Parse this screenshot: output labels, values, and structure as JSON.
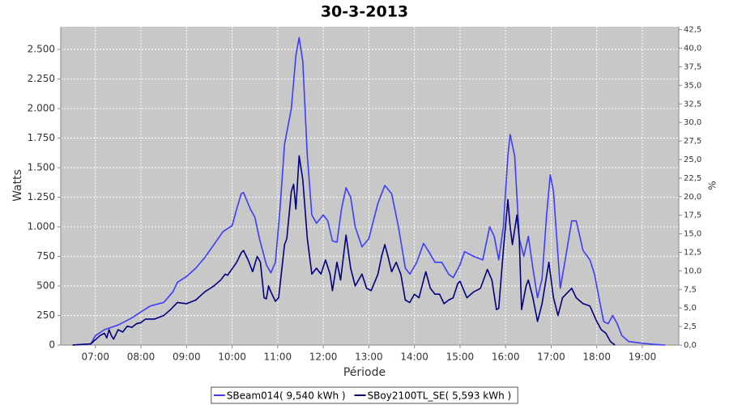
{
  "chart_data": {
    "type": "line",
    "title": "30-3-2013",
    "x_label": "Période",
    "y_label": "Watts",
    "y2_label": "%",
    "xlim": [
      6.24,
      19.8
    ],
    "xticks": [
      {
        "value": 7,
        "label": "07:00"
      },
      {
        "value": 8,
        "label": "08:00"
      },
      {
        "value": 9,
        "label": "09:00"
      },
      {
        "value": 10,
        "label": "10:00"
      },
      {
        "value": 11,
        "label": "11:00"
      },
      {
        "value": 12,
        "label": "12:00"
      },
      {
        "value": 13,
        "label": "13:00"
      },
      {
        "value": 14,
        "label": "14:00"
      },
      {
        "value": 15,
        "label": "15:00"
      },
      {
        "value": 16,
        "label": "16:00"
      },
      {
        "value": 17,
        "label": "17:00"
      },
      {
        "value": 18,
        "label": "18:00"
      },
      {
        "value": 19,
        "label": "19:00"
      }
    ],
    "ylim": [
      0,
      2692
    ],
    "yticks": [
      0,
      250,
      500,
      750,
      {
        "value": 1000,
        "label": "1.000"
      },
      {
        "value": 1250,
        "label": "1.250"
      },
      {
        "value": 1500,
        "label": "1.500"
      },
      {
        "value": 1750,
        "label": "1.750"
      },
      {
        "value": 2000,
        "label": "2.000"
      },
      {
        "value": 2250,
        "label": "2.250"
      },
      {
        "value": 2500,
        "label": "2.500"
      }
    ],
    "y2lim": [
      0,
      42.9
    ],
    "y2ticks": [
      {
        "value": 0,
        "label": "0,0"
      },
      {
        "value": 2.5,
        "label": "2,5"
      },
      {
        "value": 5,
        "label": "5,0"
      },
      {
        "value": 7.5,
        "label": "7,5"
      },
      {
        "value": 10,
        "label": "10,0"
      },
      {
        "value": 12.5,
        "label": "12,5"
      },
      {
        "value": 15,
        "label": "15,0"
      },
      {
        "value": 17.5,
        "label": "17,5"
      },
      {
        "value": 20,
        "label": "20,0"
      },
      {
        "value": 22.5,
        "label": "22,5"
      },
      {
        "value": 25,
        "label": "25,0"
      },
      {
        "value": 27.5,
        "label": "27,5"
      },
      {
        "value": 30,
        "label": "30,0"
      },
      {
        "value": 32.5,
        "label": "32,5"
      },
      {
        "value": 35,
        "label": "35,0"
      },
      {
        "value": 37.5,
        "label": "37,5"
      },
      {
        "value": 40,
        "label": "40,0"
      },
      {
        "value": 42.5,
        "label": "42,5"
      }
    ],
    "grid": true,
    "legend": "bottom",
    "series": [
      {
        "name": "SBeam014( 9,540 kWh )",
        "color": "#3c3cff",
        "x": [
          6.5,
          6.9,
          7.0,
          7.2,
          7.5,
          7.8,
          8.0,
          8.2,
          8.5,
          8.7,
          8.8,
          9.0,
          9.2,
          9.4,
          9.6,
          9.8,
          10.0,
          10.1,
          10.2,
          10.25,
          10.4,
          10.5,
          10.6,
          10.75,
          10.85,
          10.95,
          11.05,
          11.15,
          11.3,
          11.4,
          11.47,
          11.55,
          11.65,
          11.75,
          11.85,
          12.0,
          12.1,
          12.2,
          12.3,
          12.4,
          12.5,
          12.6,
          12.7,
          12.85,
          13.0,
          13.2,
          13.35,
          13.5,
          13.65,
          13.8,
          13.9,
          14.05,
          14.2,
          14.3,
          14.45,
          14.6,
          14.75,
          14.85,
          15.0,
          15.1,
          15.3,
          15.5,
          15.65,
          15.75,
          15.85,
          15.95,
          16.05,
          16.1,
          16.2,
          16.3,
          16.4,
          16.5,
          16.6,
          16.7,
          16.8,
          16.9,
          16.98,
          17.05,
          17.2,
          17.3,
          17.45,
          17.55,
          17.7,
          17.85,
          17.95,
          18.05,
          18.15,
          18.25,
          18.35,
          18.45,
          18.55,
          18.7,
          19.0,
          19.3,
          19.5
        ],
        "values": [
          0,
          10,
          80,
          130,
          170,
          230,
          280,
          330,
          360,
          450,
          530,
          580,
          650,
          740,
          850,
          960,
          1010,
          1150,
          1280,
          1290,
          1150,
          1080,
          900,
          680,
          610,
          700,
          1150,
          1700,
          2000,
          2450,
          2600,
          2400,
          1600,
          1100,
          1030,
          1100,
          1050,
          880,
          870,
          1150,
          1330,
          1250,
          1000,
          830,
          900,
          1200,
          1350,
          1280,
          1000,
          650,
          600,
          700,
          860,
          800,
          700,
          700,
          600,
          570,
          680,
          790,
          750,
          720,
          1000,
          920,
          720,
          1000,
          1600,
          1780,
          1600,
          900,
          750,
          920,
          650,
          400,
          560,
          1100,
          1440,
          1300,
          480,
          700,
          1050,
          1050,
          800,
          720,
          600,
          400,
          200,
          180,
          250,
          180,
          80,
          30,
          15,
          5,
          0
        ]
      },
      {
        "name": "SBoy2100TL_SE( 5,593 kWh )",
        "color": "#00007f",
        "x": [
          6.5,
          6.9,
          7.1,
          7.2,
          7.25,
          7.3,
          7.35,
          7.4,
          7.5,
          7.6,
          7.7,
          7.8,
          7.9,
          8.0,
          8.1,
          8.3,
          8.5,
          8.65,
          8.8,
          9.0,
          9.2,
          9.4,
          9.6,
          9.75,
          9.85,
          9.9,
          10.1,
          10.2,
          10.25,
          10.35,
          10.45,
          10.55,
          10.62,
          10.7,
          10.75,
          10.8,
          10.85,
          10.95,
          11.02,
          11.15,
          11.2,
          11.3,
          11.35,
          11.4,
          11.47,
          11.55,
          11.65,
          11.75,
          11.85,
          11.95,
          12.05,
          12.15,
          12.2,
          12.3,
          12.38,
          12.5,
          12.6,
          12.7,
          12.85,
          12.95,
          13.05,
          13.2,
          13.28,
          13.35,
          13.42,
          13.5,
          13.6,
          13.7,
          13.8,
          13.9,
          14.0,
          14.1,
          14.2,
          14.25,
          14.35,
          14.45,
          14.55,
          14.65,
          14.75,
          14.85,
          14.95,
          15.0,
          15.15,
          15.3,
          15.45,
          15.6,
          15.7,
          15.8,
          15.85,
          15.95,
          16.05,
          16.1,
          16.15,
          16.25,
          16.3,
          16.35,
          16.45,
          16.5,
          16.6,
          16.7,
          16.8,
          16.95,
          17.05,
          17.15,
          17.25,
          17.45,
          17.55,
          17.7,
          17.85,
          18.0,
          18.1,
          18.2,
          18.3,
          18.4
        ],
        "values": [
          0,
          10,
          80,
          100,
          60,
          130,
          80,
          50,
          130,
          110,
          160,
          150,
          180,
          190,
          220,
          220,
          250,
          300,
          360,
          350,
          380,
          450,
          500,
          550,
          600,
          590,
          700,
          780,
          800,
          720,
          620,
          750,
          700,
          400,
          390,
          500,
          450,
          370,
          400,
          850,
          900,
          1300,
          1360,
          1150,
          1600,
          1400,
          900,
          600,
          650,
          600,
          720,
          600,
          460,
          700,
          550,
          930,
          650,
          500,
          600,
          480,
          460,
          600,
          750,
          850,
          750,
          620,
          700,
          600,
          380,
          360,
          430,
          400,
          550,
          620,
          480,
          430,
          430,
          350,
          380,
          400,
          520,
          540,
          400,
          450,
          480,
          640,
          550,
          300,
          310,
          800,
          1230,
          1000,
          850,
          1100,
          900,
          300,
          500,
          550,
          400,
          200,
          350,
          700,
          400,
          250,
          400,
          480,
          400,
          350,
          330,
          200,
          130,
          100,
          30,
          0
        ]
      }
    ]
  }
}
